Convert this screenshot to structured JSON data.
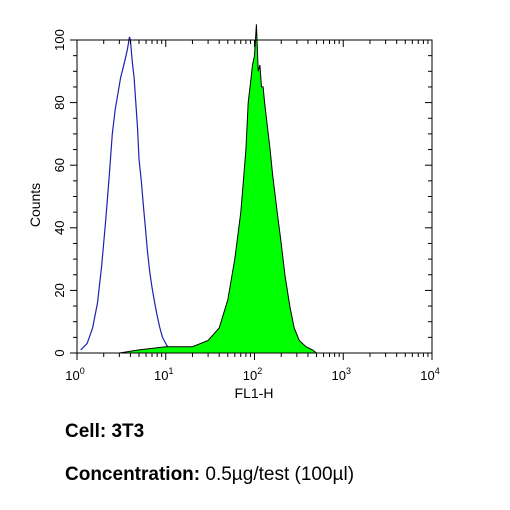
{
  "chart_data": {
    "type": "area",
    "title": "",
    "xlabel": "FL1-H",
    "ylabel": "Counts",
    "x_scale": "log",
    "xlim": [
      1,
      10000
    ],
    "ylim": [
      0,
      100
    ],
    "x_ticks": [
      {
        "value": 1,
        "base": "10",
        "exp": "0"
      },
      {
        "value": 10,
        "base": "10",
        "exp": "1"
      },
      {
        "value": 100,
        "base": "10",
        "exp": "2"
      },
      {
        "value": 1000,
        "base": "10",
        "exp": "3"
      },
      {
        "value": 10000,
        "base": "10",
        "exp": "4"
      }
    ],
    "y_ticks": [
      "0",
      "20",
      "40",
      "60",
      "80",
      "100"
    ],
    "grid": false,
    "legend": "none",
    "series": [
      {
        "style": "outline",
        "color": "#1f1fb4",
        "x": [
          1.1,
          1.3,
          1.5,
          1.7,
          1.9,
          2.1,
          2.3,
          2.5,
          2.7,
          2.9,
          3.1,
          3.3,
          3.5,
          3.7,
          3.9,
          4.0,
          4.2,
          4.4,
          4.6,
          4.8,
          5.0,
          5.3,
          5.6,
          5.9,
          6.2,
          6.6,
          7.0,
          7.5,
          8.0,
          8.6,
          9.2,
          10,
          11,
          12
        ],
        "y": [
          1,
          3,
          8,
          16,
          28,
          42,
          56,
          70,
          78,
          83,
          88,
          91,
          94,
          97,
          101,
          100,
          93,
          88,
          80,
          72,
          62,
          55,
          47,
          40,
          33,
          26,
          21,
          16,
          12,
          8,
          5,
          3,
          1,
          0
        ]
      },
      {
        "style": "filled",
        "color": "#00ff00",
        "outline_color": "#000000",
        "x": [
          3,
          5,
          10,
          20,
          30,
          40,
          50,
          60,
          70,
          75,
          80,
          85,
          90,
          95,
          100,
          105,
          110,
          115,
          120,
          125,
          130,
          140,
          150,
          160,
          180,
          200,
          220,
          250,
          280,
          320,
          380,
          450,
          500
        ],
        "y": [
          0,
          1,
          2,
          2,
          4,
          8,
          17,
          30,
          45,
          55,
          65,
          80,
          86,
          92,
          95,
          105,
          90,
          92,
          85,
          85,
          80,
          72,
          65,
          57,
          45,
          35,
          25,
          15,
          8,
          4,
          2,
          1,
          0
        ]
      }
    ]
  },
  "captions": {
    "cell_label": "Cell:",
    "cell_value": "3T3",
    "concentration_label": "Concentration:",
    "concentration_value": "0.5µg/test (100µl)"
  }
}
